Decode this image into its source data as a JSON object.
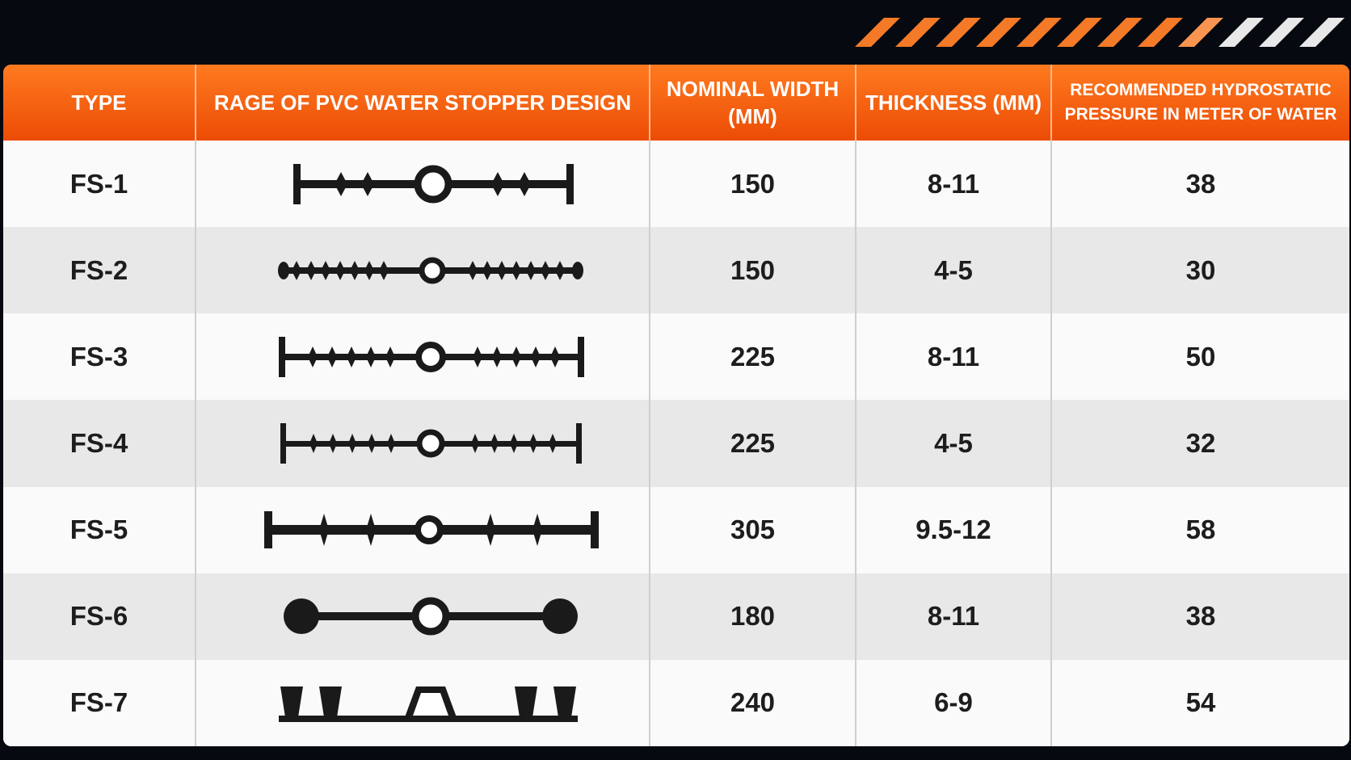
{
  "header": {
    "type": "TYPE",
    "design": "RAGE OF PVC WATER STOPPER DESIGN",
    "width": "NOMINAL WIDTH (MM)",
    "thickness": "THICKNESS (MM)",
    "pressure": "RECOMMENDED HYDROSTATIC PRESSURE IN METER OF WATER"
  },
  "rows": [
    {
      "type": "FS-1",
      "width": "150",
      "thickness": "8-11",
      "pressure": "38"
    },
    {
      "type": "FS-2",
      "width": "150",
      "thickness": "4-5",
      "pressure": "30"
    },
    {
      "type": "FS-3",
      "width": "225",
      "thickness": "8-11",
      "pressure": "50"
    },
    {
      "type": "FS-4",
      "width": "225",
      "thickness": "4-5",
      "pressure": "32"
    },
    {
      "type": "FS-5",
      "width": "305",
      "thickness": "9.5-12",
      "pressure": "58"
    },
    {
      "type": "FS-6",
      "width": "180",
      "thickness": "8-11",
      "pressure": "38"
    },
    {
      "type": "FS-7",
      "width": "240",
      "thickness": "6-9",
      "pressure": "54"
    }
  ],
  "colors": {
    "accent": "#f2600f",
    "background": "#06090f",
    "profile": "#1a1a1a"
  }
}
